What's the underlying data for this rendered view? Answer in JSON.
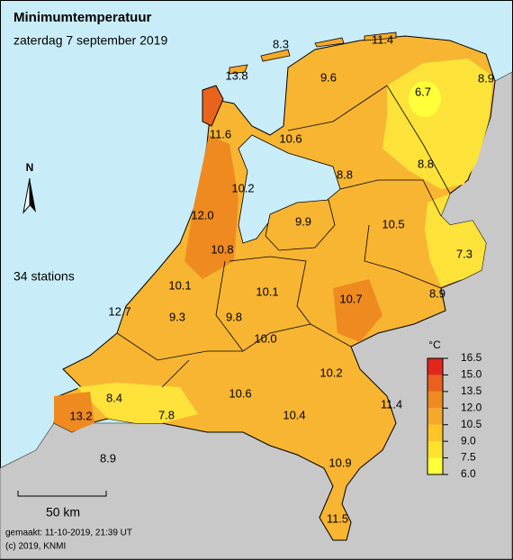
{
  "header": {
    "title": "Minimumtemperatuur",
    "subtitle": "zaterdag 7 september 2019"
  },
  "north": "N",
  "station_count": "34 stations",
  "stations": [
    "8.3",
    "11.4",
    "13.8",
    "9.6",
    "6.7",
    "8.9",
    "11.6",
    "10.6",
    "8.8",
    "8.8",
    "10.2",
    "12.0",
    "9.9",
    "10.5",
    "7.3",
    "10.8",
    "10.1",
    "10.1",
    "10.7",
    "8.9",
    "12.7",
    "9.3",
    "9.8",
    "10.0",
    "10.2",
    "10.6",
    "8.4",
    "11.4",
    "13.2",
    "7.8",
    "10.4",
    "8.9",
    "10.9",
    "11.5"
  ],
  "legend": {
    "unit": "°C",
    "ticks": [
      16.5,
      {
        "value": 15,
        "label": "15.0"
      },
      13.5,
      {
        "value": 12,
        "label": "12.0"
      },
      10.5,
      {
        "value": 9,
        "label": "9.0"
      },
      7.5,
      {
        "value": 6,
        "label": "6.0"
      }
    ],
    "colors": [
      "#e3261b",
      "#e9601e",
      "#ef8a20",
      "#f5a82a",
      "#ffc425",
      "#ffe22e",
      "#ffff3a"
    ]
  },
  "scale_bar": "50 km",
  "footer": [
    "gemaakt: 11-10-2019, 21:39 UT",
    "(c) 2019, KNMI"
  ]
}
